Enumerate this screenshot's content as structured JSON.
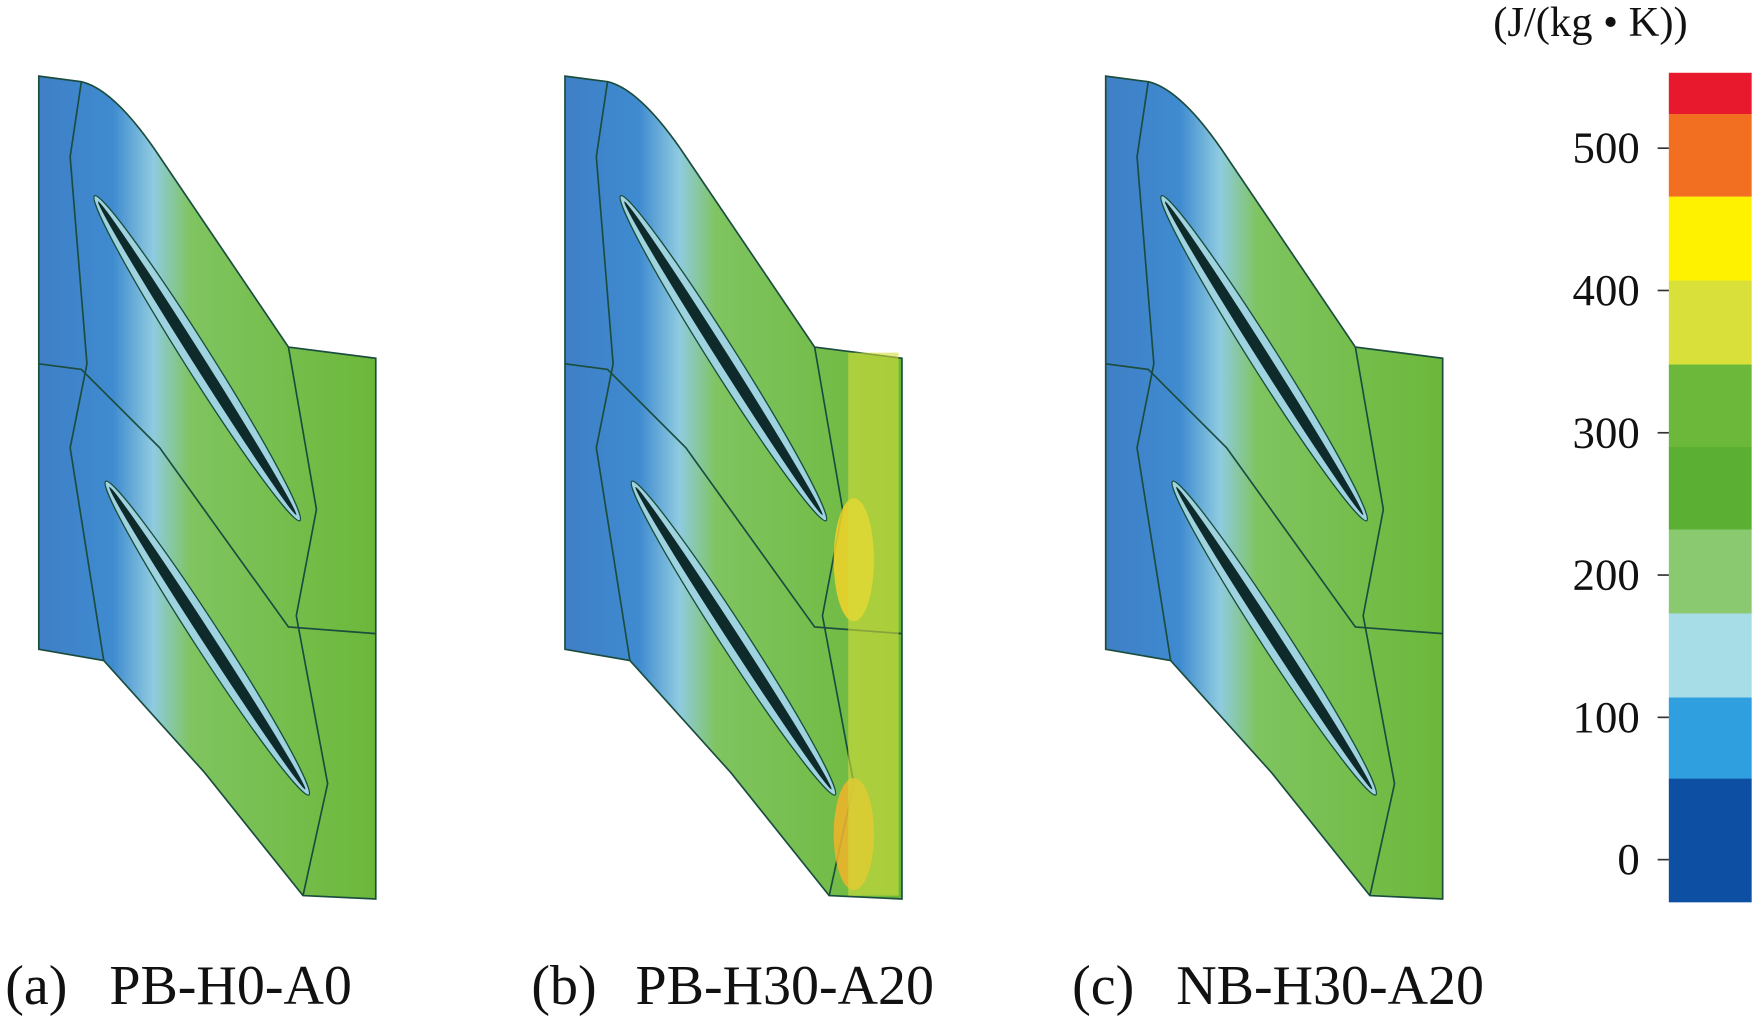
{
  "colorbar": {
    "unit": "(J/(kg • K))",
    "levels": [
      -30,
      57,
      114,
      173,
      232,
      290,
      348,
      407,
      466,
      524,
      553
    ],
    "colors": [
      "#0d4fa3",
      "#2f9fe0",
      "#a6dde6",
      "#8ac970",
      "#5bb033",
      "#6cb83a",
      "#d9e03a",
      "#fff200",
      "#f26f21",
      "#e8192c"
    ],
    "ticks": [
      0,
      100,
      200,
      300,
      400,
      500
    ]
  },
  "panels": [
    {
      "label": "(a)",
      "name": "PB-H0-A0"
    },
    {
      "label": "(b)",
      "name": "PB-H30-A20"
    },
    {
      "label": "(c)",
      "name": "NB-H30-A20"
    }
  ]
}
